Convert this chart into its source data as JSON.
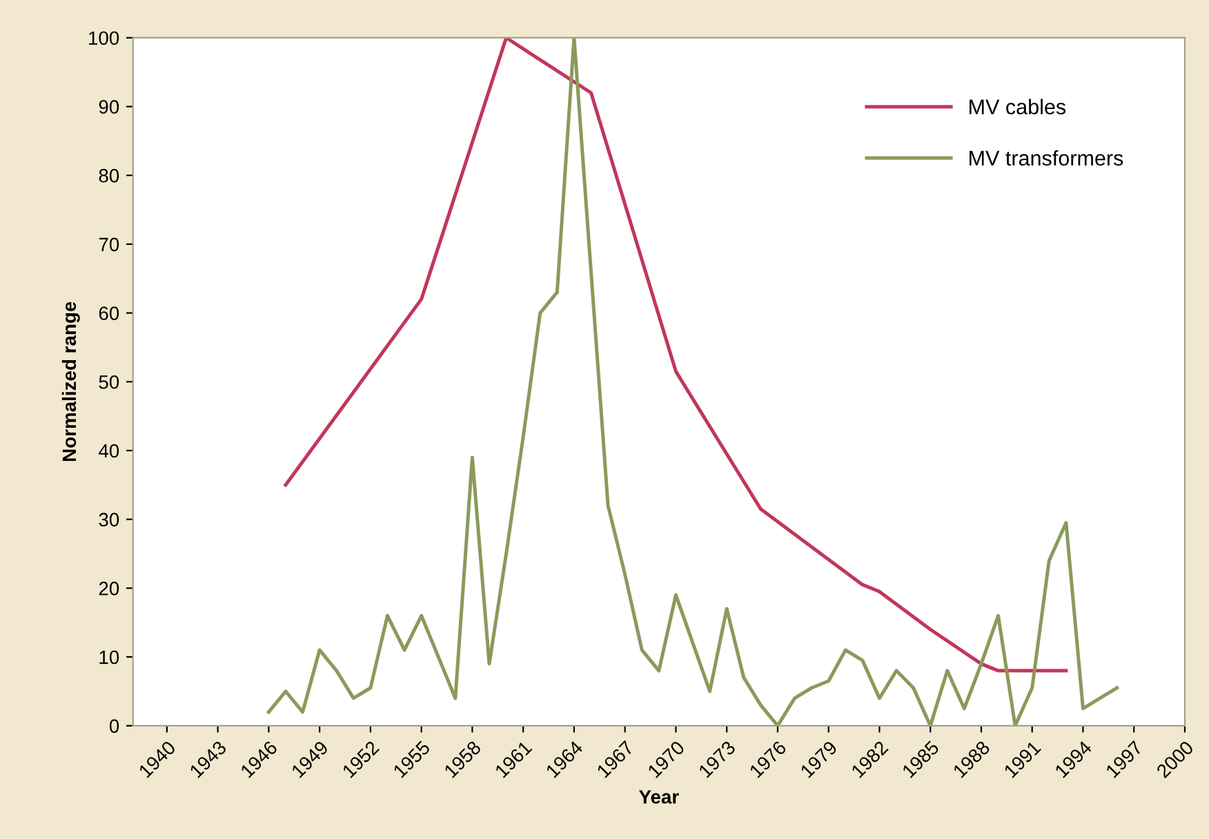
{
  "chart_data": {
    "type": "line",
    "xlabel": "Year",
    "ylabel": "Normalized range",
    "xlim": [
      1938,
      2000
    ],
    "xticks": [
      1940,
      1943,
      1946,
      1949,
      1952,
      1955,
      1958,
      1961,
      1964,
      1967,
      1970,
      1973,
      1976,
      1979,
      1982,
      1985,
      1988,
      1991,
      1994,
      1997,
      2000
    ],
    "ylim": [
      0,
      100
    ],
    "yticks": [
      0,
      10,
      20,
      30,
      40,
      50,
      60,
      70,
      80,
      90,
      100
    ],
    "grid": false,
    "legend": "top right",
    "marker": "none",
    "line_style": "solid",
    "series": [
      {
        "name": "MV cables",
        "color": "#c0375a",
        "x": [
          1947,
          1955,
          1960,
          1965,
          1970,
          1975,
          1981,
          1982,
          1985,
          1988,
          1989,
          1993
        ],
        "values": [
          35,
          62,
          100,
          92,
          51.5,
          31.5,
          20.5,
          19.5,
          14,
          9,
          8,
          8
        ]
      },
      {
        "name": "MV transformers",
        "color": "#8a9a5b",
        "x": [
          1946,
          1947,
          1948,
          1949,
          1950,
          1951,
          1952,
          1953,
          1954,
          1955,
          1956,
          1957,
          1958,
          1959,
          1960,
          1961,
          1962,
          1963,
          1964,
          1965,
          1966,
          1967,
          1968,
          1969,
          1970,
          1971,
          1972,
          1973,
          1974,
          1975,
          1976,
          1977,
          1978,
          1979,
          1980,
          1981,
          1982,
          1983,
          1984,
          1985,
          1986,
          1987,
          1988,
          1989,
          1990,
          1991,
          1992,
          1993,
          1994,
          1995,
          1996
        ],
        "values": [
          2,
          5,
          2,
          11,
          8,
          4,
          5.5,
          16,
          11,
          16,
          10,
          4,
          39,
          9,
          25,
          42,
          60,
          63,
          100,
          66,
          32,
          22,
          11,
          8,
          19,
          12,
          5,
          17,
          7,
          3,
          0,
          4,
          5.5,
          6.5,
          11,
          9.5,
          4,
          8,
          5.5,
          0,
          8,
          2.5,
          9,
          16,
          0,
          5.5,
          24,
          29.5,
          2.5,
          4,
          5.5
        ]
      }
    ]
  }
}
